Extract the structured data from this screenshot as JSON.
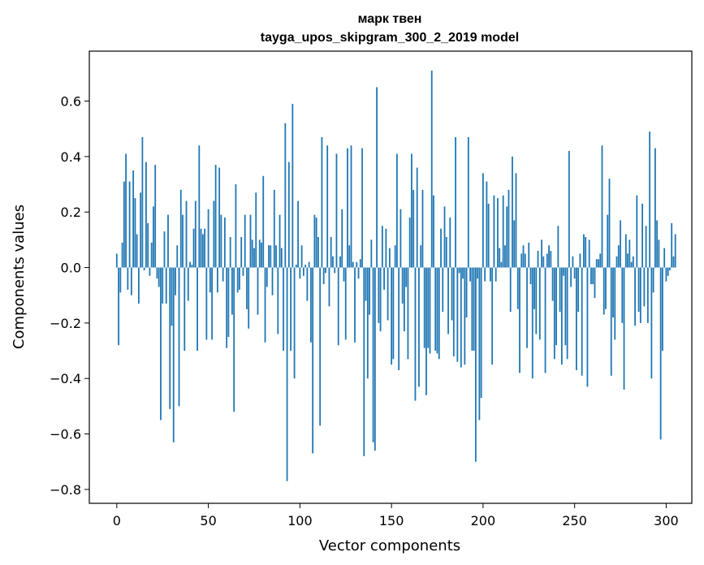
{
  "chart_data": {
    "type": "bar",
    "title": "марк твен",
    "subtitle": "tayga_upos_skipgram_300_2_2019 model",
    "xlabel": "Vector components",
    "ylabel": "Components values",
    "xlim": [
      -15,
      314
    ],
    "ylim": [
      -0.85,
      0.78
    ],
    "xticks": [
      0,
      50,
      100,
      150,
      200,
      250,
      300
    ],
    "xtick_labels": [
      "0",
      "50",
      "100",
      "150",
      "200",
      "250",
      "300"
    ],
    "yticks": [
      -0.8,
      -0.6,
      -0.4,
      -0.2,
      0.0,
      0.2,
      0.4,
      0.6
    ],
    "ytick_labels": [
      "−0.8",
      "−0.6",
      "−0.4",
      "−0.2",
      "0.0",
      "0.2",
      "0.4",
      "0.6"
    ],
    "grid": false,
    "bar_color": "#1f77b4",
    "series": [
      {
        "name": "components",
        "values": [
          0.05,
          -0.28,
          -0.09,
          0.09,
          0.31,
          0.41,
          -0.08,
          0.31,
          -0.1,
          0.35,
          0.25,
          0.12,
          -0.13,
          0.27,
          0.47,
          -0.01,
          0.38,
          0.16,
          -0.03,
          0.09,
          0.22,
          0.37,
          -0.04,
          -0.07,
          -0.55,
          -0.13,
          0.13,
          -0.13,
          0.19,
          -0.51,
          -0.21,
          -0.63,
          -0.1,
          0.08,
          -0.5,
          0.28,
          0.19,
          -0.3,
          0.24,
          -0.12,
          0.02,
          0.01,
          0.14,
          0.24,
          -0.3,
          0.44,
          0.14,
          0.12,
          0.14,
          -0.26,
          0.21,
          -0.09,
          -0.26,
          0.24,
          0.37,
          -0.09,
          0.36,
          0.19,
          -0.05,
          0.18,
          -0.29,
          -0.25,
          0.11,
          -0.17,
          -0.52,
          0.3,
          -0.09,
          -0.08,
          0.11,
          -0.03,
          0.19,
          -0.15,
          -0.22,
          0.19,
          0.1,
          0.07,
          0.27,
          -0.17,
          0.1,
          0.09,
          0.33,
          -0.27,
          -0.07,
          0.08,
          0.08,
          -0.1,
          0.28,
          0.08,
          -0.24,
          0.19,
          0.07,
          -0.3,
          0.52,
          -0.77,
          0.38,
          -0.3,
          0.59,
          -0.4,
          0.01,
          0.24,
          -0.04,
          0.08,
          -0.03,
          0.01,
          -0.12,
          0.02,
          -0.27,
          -0.67,
          0.19,
          0.18,
          0.11,
          -0.57,
          0.47,
          -0.06,
          -0.02,
          0.44,
          -0.14,
          0.11,
          0.04,
          -0.02,
          0.41,
          -0.28,
          0.04,
          0.21,
          -0.05,
          -0.26,
          0.43,
          0.08,
          0.44,
          0.02,
          -0.27,
          0.02,
          -0.04,
          0.03,
          0.43,
          -0.68,
          -0.12,
          -0.4,
          -0.17,
          0.1,
          -0.63,
          -0.66,
          0.65,
          -0.2,
          -0.23,
          0.15,
          -0.08,
          0.14,
          -0.19,
          0.07,
          -0.35,
          -0.33,
          0.08,
          0.41,
          -0.37,
          0.21,
          -0.13,
          -0.23,
          -0.07,
          -0.33,
          0.18,
          0.41,
          0.28,
          -0.48,
          0.36,
          -0.43,
          0.08,
          0.28,
          -0.29,
          -0.46,
          -0.29,
          -0.31,
          0.71,
          0.26,
          -0.3,
          -0.31,
          -0.33,
          0.14,
          -0.16,
          0.22,
          0.11,
          -0.24,
          0.18,
          -0.19,
          -0.32,
          0.47,
          -0.34,
          -0.02,
          -0.36,
          -0.04,
          -0.35,
          -0.18,
          0.47,
          -0.05,
          -0.3,
          -0.3,
          -0.7,
          -0.04,
          -0.55,
          -0.47,
          0.34,
          -0.05,
          0.31,
          0.23,
          -0.05,
          -0.35,
          0.26,
          -0.05,
          0.25,
          0.07,
          0.02,
          0.26,
          0.08,
          0.22,
          0.28,
          -0.16,
          0.4,
          0.17,
          0.34,
          -0.15,
          -0.38,
          0.05,
          0.08,
          0.05,
          -0.29,
          0.09,
          -0.06,
          -0.4,
          -0.15,
          -0.24,
          0.06,
          -0.26,
          0.1,
          0.04,
          -0.38,
          0.05,
          0.08,
          0.06,
          -0.12,
          -0.33,
          -0.28,
          0.15,
          -0.16,
          -0.35,
          -0.03,
          -0.28,
          -0.33,
          0.42,
          -0.07,
          0.04,
          -0.04,
          -0.37,
          -0.16,
          0.05,
          -0.39,
          0.12,
          0.11,
          -0.43,
          0.1,
          -0.06,
          -0.06,
          -0.11,
          0.03,
          0.03,
          0.05,
          0.44,
          -0.17,
          -0.15,
          0.19,
          0.32,
          -0.39,
          -0.18,
          -0.26,
          0.04,
          0.08,
          0.17,
          -0.2,
          -0.44,
          0.12,
          0.05,
          0.1,
          0.02,
          0.04,
          -0.21,
          0.26,
          -0.16,
          -0.2,
          0.23,
          -0.14,
          0.15,
          -0.2,
          0.49,
          -0.4,
          -0.09,
          0.43,
          0.17,
          0.1,
          -0.62,
          -0.3,
          0.07,
          -0.05,
          -0.03,
          -0.01,
          0.16,
          0.04,
          0.12
        ]
      }
    ]
  }
}
